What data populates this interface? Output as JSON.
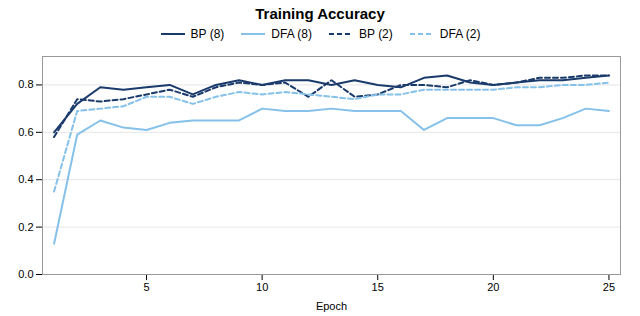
{
  "chart_data": {
    "type": "line",
    "title": "Training Accuracy",
    "xlabel": "Epoch",
    "x": [
      1,
      2,
      3,
      4,
      5,
      6,
      7,
      8,
      9,
      10,
      11,
      12,
      13,
      14,
      15,
      16,
      17,
      18,
      19,
      20,
      21,
      22,
      23,
      24,
      25
    ],
    "series": [
      {
        "name": "BP (8)",
        "color": "#1a3a6b",
        "line_style": "solid",
        "values": [
          0.6,
          0.72,
          0.79,
          0.78,
          0.79,
          0.8,
          0.76,
          0.8,
          0.82,
          0.8,
          0.82,
          0.82,
          0.8,
          0.82,
          0.8,
          0.79,
          0.83,
          0.84,
          0.81,
          0.8,
          0.81,
          0.82,
          0.82,
          0.83,
          0.84
        ]
      },
      {
        "name": "DFA (8)",
        "color": "#85c1e9",
        "line_style": "solid",
        "values": [
          0.13,
          0.59,
          0.65,
          0.62,
          0.61,
          0.64,
          0.65,
          0.65,
          0.65,
          0.7,
          0.69,
          0.69,
          0.7,
          0.69,
          0.69,
          0.69,
          0.61,
          0.66,
          0.66,
          0.66,
          0.63,
          0.63,
          0.66,
          0.7,
          0.69
        ]
      },
      {
        "name": "BP (2)",
        "color": "#1a3a6b",
        "line_style": "dashed",
        "values": [
          0.58,
          0.74,
          0.73,
          0.74,
          0.76,
          0.78,
          0.75,
          0.79,
          0.81,
          0.8,
          0.81,
          0.75,
          0.82,
          0.75,
          0.76,
          0.8,
          0.8,
          0.79,
          0.82,
          0.8,
          0.81,
          0.83,
          0.83,
          0.84,
          0.84
        ]
      },
      {
        "name": "DFA (2)",
        "color": "#85c1e9",
        "line_style": "dashed",
        "values": [
          0.35,
          0.69,
          0.7,
          0.71,
          0.75,
          0.75,
          0.72,
          0.75,
          0.77,
          0.76,
          0.77,
          0.76,
          0.75,
          0.74,
          0.76,
          0.76,
          0.78,
          0.78,
          0.78,
          0.78,
          0.79,
          0.79,
          0.8,
          0.8,
          0.81
        ]
      }
    ],
    "xlim": [
      0.5,
      25.5
    ],
    "xticks": [
      5,
      10,
      15,
      20,
      25
    ],
    "ylim": [
      0,
      0.92
    ],
    "yticks": [
      0,
      0.2,
      0.4,
      0.6,
      0.8
    ],
    "grid": true,
    "legend": "top"
  }
}
